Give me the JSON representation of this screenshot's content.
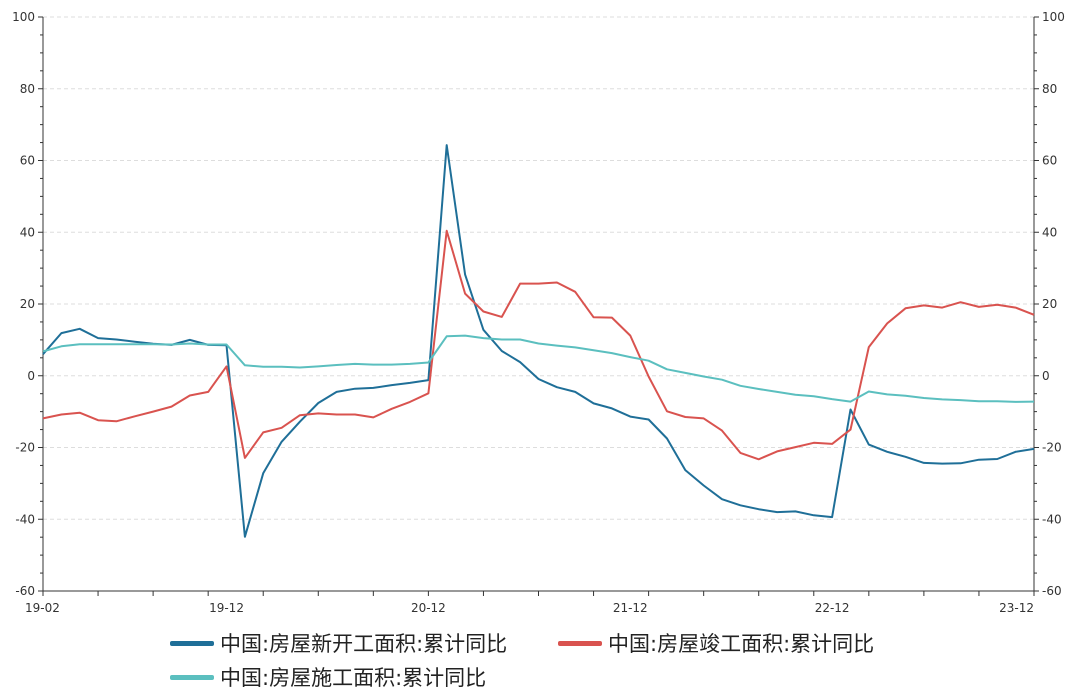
{
  "chart_data": {
    "type": "line",
    "title": "",
    "xlabel": "",
    "ylabel": "",
    "ylim": [
      -60,
      100
    ],
    "yticks": [
      -60,
      -40,
      -20,
      0,
      20,
      40,
      60,
      80,
      100
    ],
    "ytick_labels": [
      "-60",
      "-40",
      "-20",
      "0",
      "20",
      "40",
      "60",
      "80",
      "100"
    ],
    "x_tick_labels": [
      "19-02",
      "19-12",
      "20-12",
      "21-12",
      "22-12",
      "23-12"
    ],
    "grid": "horizontal dashed",
    "legend_position": "bottom",
    "x": [
      "19-02",
      "19-03",
      "19-04",
      "19-05",
      "19-06",
      "19-07",
      "19-08",
      "19-09",
      "19-10",
      "19-11",
      "19-12",
      "20-02",
      "20-03",
      "20-04",
      "20-05",
      "20-06",
      "20-07",
      "20-08",
      "20-09",
      "20-10",
      "20-11",
      "20-12",
      "21-02",
      "21-03",
      "21-04",
      "21-05",
      "21-06",
      "21-07",
      "21-08",
      "21-09",
      "21-10",
      "21-11",
      "21-12",
      "22-02",
      "22-03",
      "22-04",
      "22-05",
      "22-06",
      "22-07",
      "22-08",
      "22-09",
      "22-10",
      "22-11",
      "22-12",
      "23-02",
      "23-03",
      "23-04",
      "23-05",
      "23-06",
      "23-07",
      "23-08",
      "23-09",
      "23-10",
      "23-11",
      "23-12"
    ],
    "series": [
      {
        "name": "中国:房屋新开工面积:累计同比",
        "color": "#1f6f98",
        "values": [
          6.0,
          11.9,
          13.1,
          10.5,
          10.1,
          9.5,
          8.9,
          8.6,
          10.0,
          8.6,
          8.5,
          -44.9,
          -27.2,
          -18.4,
          -12.8,
          -7.6,
          -4.5,
          -3.6,
          -3.4,
          -2.6,
          -2.0,
          -1.2,
          64.3,
          28.2,
          12.8,
          6.9,
          3.8,
          -0.9,
          -3.2,
          -4.5,
          -7.7,
          -9.1,
          -11.4,
          -12.2,
          -17.5,
          -26.3,
          -30.6,
          -34.4,
          -36.1,
          -37.2,
          -38.0,
          -37.8,
          -38.9,
          -39.4,
          -9.4,
          -19.2,
          -21.2,
          -22.6,
          -24.3,
          -24.5,
          -24.4,
          -23.4,
          -23.2,
          -21.2,
          -20.4
        ]
      },
      {
        "name": "中国:房屋竣工面积:累计同比",
        "color": "#d9534f",
        "values": [
          -11.9,
          -10.8,
          -10.3,
          -12.4,
          -12.7,
          -11.3,
          -10.0,
          -8.6,
          -5.5,
          -4.5,
          2.6,
          -22.9,
          -15.8,
          -14.5,
          -11.0,
          -10.5,
          -10.8,
          -10.8,
          -11.6,
          -9.2,
          -7.3,
          -4.9,
          40.4,
          22.9,
          17.9,
          16.4,
          25.7,
          25.7,
          26.0,
          23.4,
          16.3,
          16.2,
          11.2,
          -0.2,
          -9.9,
          -11.5,
          -11.9,
          -15.3,
          -21.5,
          -23.3,
          -21.1,
          -19.9,
          -18.7,
          -19.0,
          -15.0,
          8.0,
          14.6,
          18.8,
          19.6,
          19.0,
          20.5,
          19.2,
          19.8,
          19.0,
          17.0
        ]
      },
      {
        "name": "中国:房屋施工面积:累计同比",
        "color": "#5bbfbf",
        "values": [
          6.8,
          8.2,
          8.8,
          8.8,
          8.8,
          8.8,
          8.8,
          8.7,
          9.0,
          8.7,
          8.7,
          2.9,
          2.5,
          2.5,
          2.3,
          2.6,
          3.0,
          3.3,
          3.1,
          3.1,
          3.3,
          3.7,
          11.0,
          11.2,
          10.5,
          10.1,
          10.1,
          9.0,
          8.4,
          7.9,
          7.1,
          6.3,
          5.2,
          4.2,
          1.8,
          0.8,
          -0.2,
          -1.1,
          -2.8,
          -3.7,
          -4.5,
          -5.3,
          -5.7,
          -6.5,
          -7.2,
          -4.4,
          -5.2,
          -5.6,
          -6.2,
          -6.6,
          -6.8,
          -7.1,
          -7.1,
          -7.3,
          -7.2
        ]
      }
    ]
  }
}
